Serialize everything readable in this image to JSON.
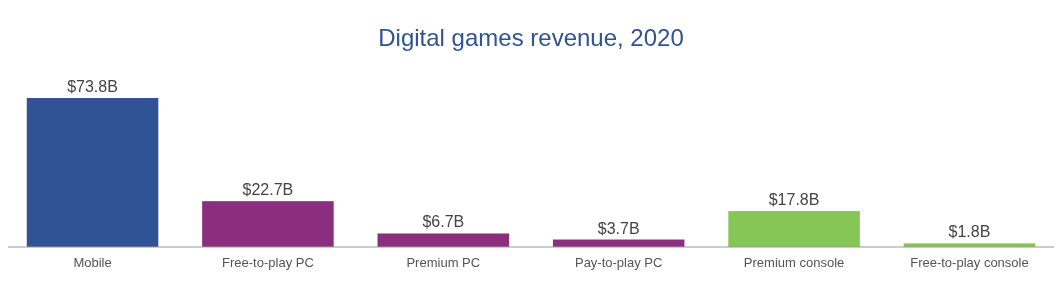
{
  "chart_data": {
    "type": "bar",
    "title": "Digital games revenue, 2020",
    "categories": [
      "Mobile",
      "Free-to-play PC",
      "Premium PC",
      "Pay-to-play PC",
      "Premium console",
      "Free-to-play console"
    ],
    "values": [
      73.8,
      22.7,
      6.7,
      3.7,
      17.8,
      1.8
    ],
    "colors": [
      "#2f5394",
      "#8b2e7d",
      "#8b2e7d",
      "#8b2e7d",
      "#86c655",
      "#86c655"
    ],
    "value_labels": [
      "$73.8B",
      "$22.7B",
      "$6.7B",
      "$3.7B",
      "$17.8B",
      "$1.8B"
    ]
  }
}
